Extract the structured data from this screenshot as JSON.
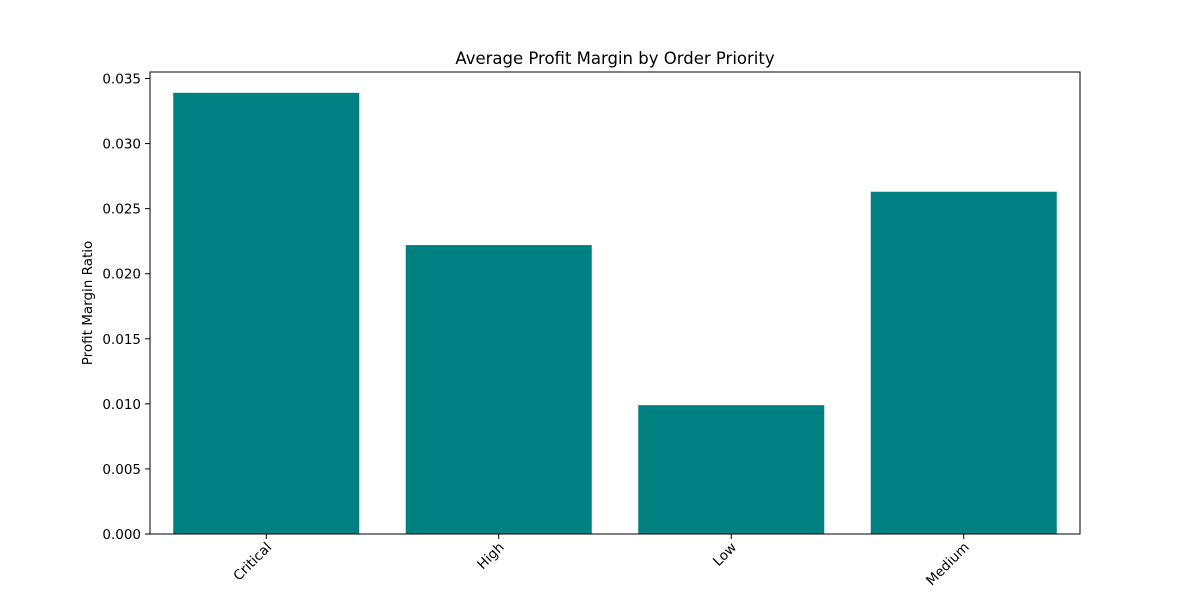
{
  "chart_data": {
    "type": "bar",
    "title": "Average Profit Margin by Order Priority",
    "xlabel": "",
    "ylabel": "Profit Margin Ratio",
    "categories": [
      "Critical",
      "High",
      "Low",
      "Medium"
    ],
    "values": [
      0.0339,
      0.0222,
      0.0099,
      0.0263
    ],
    "ylim": [
      0,
      0.0355
    ],
    "yticks": [
      0.0,
      0.005,
      0.01,
      0.015,
      0.02,
      0.025,
      0.03,
      0.035
    ],
    "ytick_labels": [
      "0.000",
      "0.005",
      "0.010",
      "0.015",
      "0.020",
      "0.025",
      "0.030",
      "0.035"
    ],
    "xtick_rotation": 45,
    "bar_color": "#008080",
    "grid": false
  }
}
